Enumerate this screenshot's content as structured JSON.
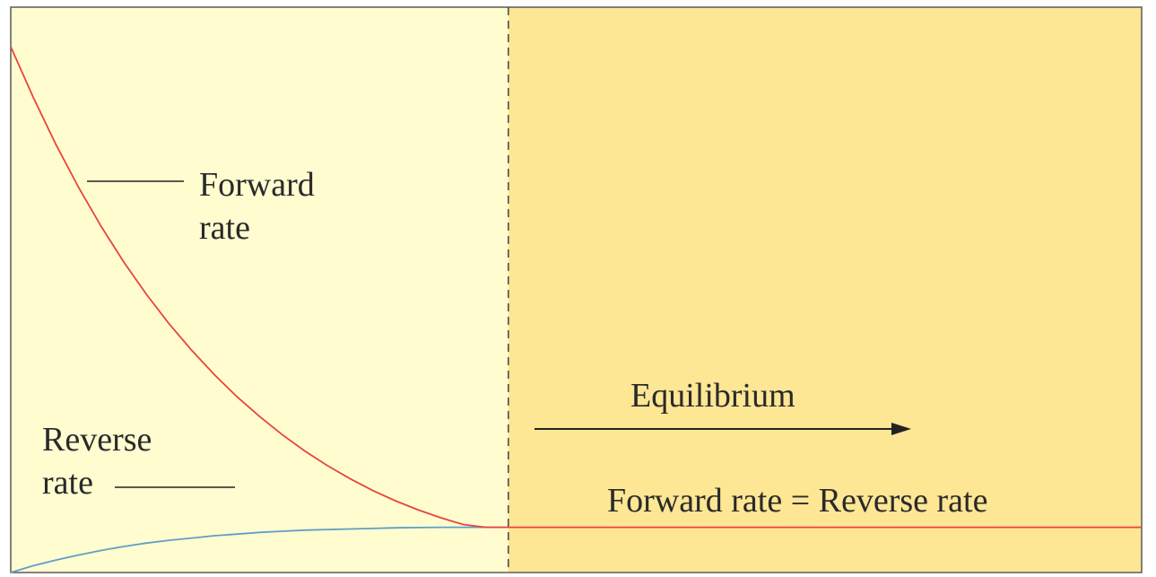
{
  "chart_data": {
    "type": "line",
    "title": "",
    "xlabel": "",
    "ylabel": "",
    "grid": false,
    "equilibrium_x": 0.44,
    "xlim": [
      0,
      1
    ],
    "ylim": [
      0,
      1
    ],
    "region_colors": {
      "approach": "#fffcd0",
      "equilibrium": "#fde694"
    },
    "series": [
      {
        "name": "Forward rate",
        "color": "#e8453c",
        "x": [
          0,
          0.02,
          0.04,
          0.06,
          0.08,
          0.1,
          0.12,
          0.14,
          0.16,
          0.18,
          0.2,
          0.22,
          0.24,
          0.26,
          0.28,
          0.3,
          0.32,
          0.34,
          0.36,
          0.38,
          0.4,
          0.42,
          0.44,
          1
        ],
        "y": [
          0.93,
          0.84,
          0.757,
          0.681,
          0.612,
          0.549,
          0.492,
          0.44,
          0.393,
          0.35,
          0.311,
          0.276,
          0.244,
          0.215,
          0.189,
          0.166,
          0.145,
          0.127,
          0.111,
          0.097,
          0.085,
          0.08,
          0.08,
          0.08
        ]
      },
      {
        "name": "Reverse rate",
        "color": "#5f9fc7",
        "x": [
          0,
          0.02,
          0.04,
          0.06,
          0.08,
          0.1,
          0.12,
          0.14,
          0.16,
          0.18,
          0.2,
          0.22,
          0.24,
          0.26,
          0.28,
          0.3,
          0.32,
          0.34,
          0.36,
          0.38,
          0.4,
          0.42,
          0.44
        ],
        "y": [
          0,
          0.012,
          0.022,
          0.031,
          0.039,
          0.046,
          0.052,
          0.057,
          0.061,
          0.065,
          0.068,
          0.071,
          0.073,
          0.075,
          0.076,
          0.077,
          0.078,
          0.079,
          0.0795,
          0.08,
          0.08,
          0.08,
          0.08
        ]
      }
    ],
    "annotations": {
      "forward": [
        "Forward",
        "rate"
      ],
      "reverse": [
        "Reverse",
        "rate"
      ],
      "equilibrium": "Equilibrium",
      "equality": "Forward rate = Reverse rate"
    }
  }
}
